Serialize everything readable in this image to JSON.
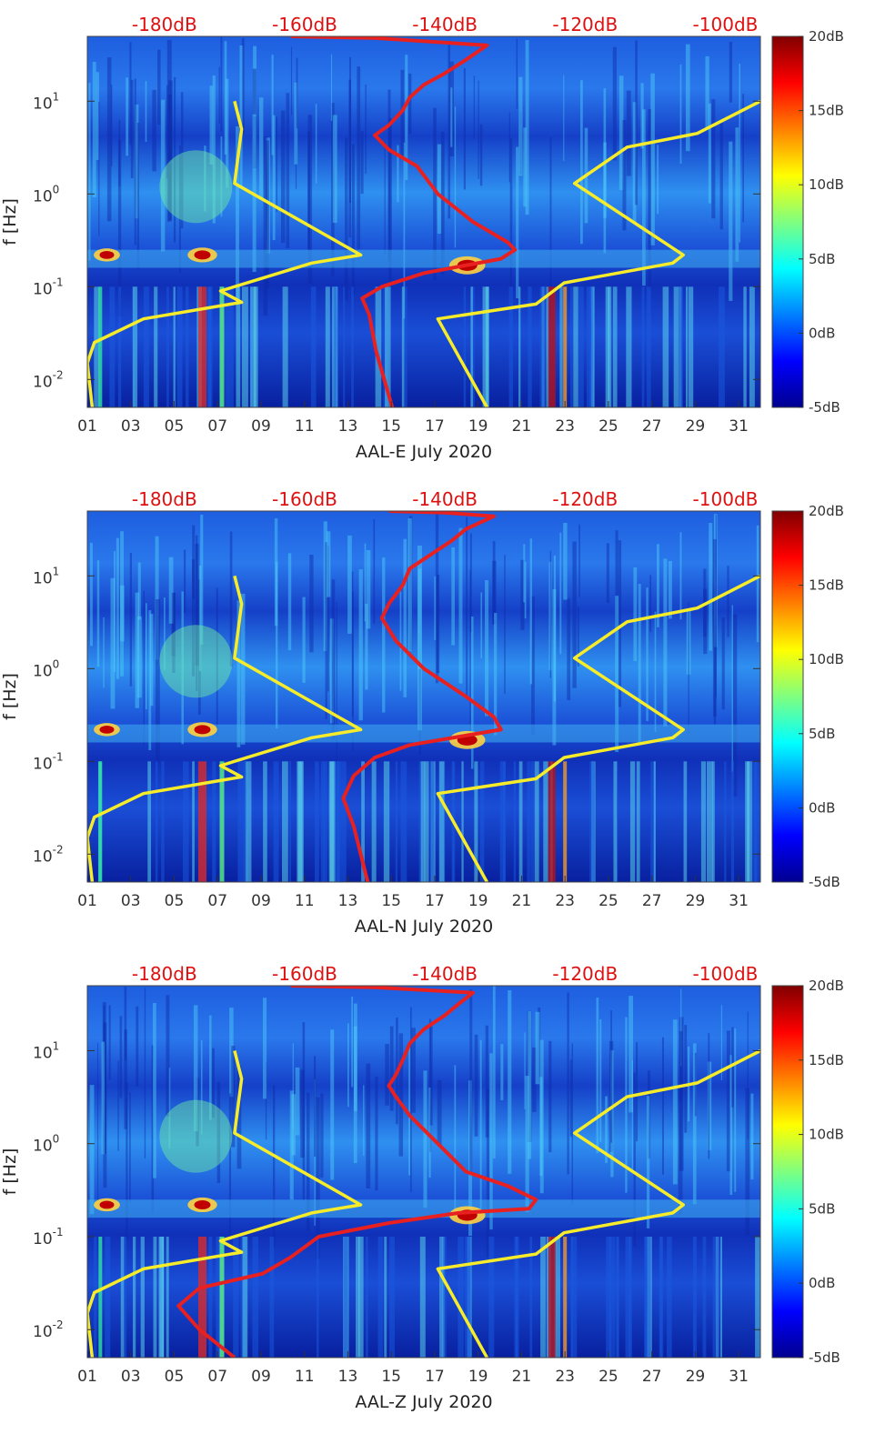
{
  "chart_data": [
    {
      "type": "heatmap",
      "xlabel": "AAL-E July 2020",
      "ylabel": "f [Hz]",
      "x_tick_labels": [
        "01",
        "03",
        "05",
        "07",
        "09",
        "11",
        "13",
        "15",
        "17",
        "19",
        "21",
        "23",
        "25",
        "27",
        "29",
        "31"
      ],
      "xlim": [
        1,
        32
      ],
      "ylim": [
        0.005,
        50
      ],
      "y_scale": "log",
      "y_tick_labels": [
        {
          "base": "10",
          "exp": "-2"
        },
        {
          "base": "10",
          "exp": "-1"
        },
        {
          "base": "10",
          "exp": "0"
        },
        {
          "base": "10",
          "exp": "1"
        }
      ],
      "y_tick_values": [
        0.01,
        0.1,
        1,
        10
      ],
      "top_axis_labels": [
        "-180dB",
        "-160dB",
        "-140dB",
        "-120dB",
        "-100dB"
      ],
      "top_axis_values": [
        -180,
        -160,
        -140,
        -120,
        -100
      ],
      "top_axis_range": [
        -191,
        -95
      ],
      "colorbar": {
        "labels": [
          "20dB",
          "15dB",
          "10dB",
          "5dB",
          "0dB",
          "-5dB"
        ],
        "values": [
          20,
          15,
          10,
          5,
          0,
          -5
        ],
        "range": [
          -5,
          20
        ],
        "colormap": "jet"
      },
      "series": [
        {
          "color": "#f7ec2a",
          "points": [
            [
              -190.3,
              0.005
            ],
            [
              -191,
              0.015
            ],
            [
              -190,
              0.025
            ],
            [
              -183,
              0.045
            ],
            [
              -169,
              0.068
            ],
            [
              -172,
              0.09
            ],
            [
              -159,
              0.18
            ],
            [
              -152,
              0.22
            ],
            [
              -170,
              1.3
            ],
            [
              -169,
              5
            ],
            [
              -170,
              10
            ]
          ]
        },
        {
          "color": "#f7ec2a",
          "points": [
            [
              -134,
              0.005
            ],
            [
              -141,
              0.045
            ],
            [
              -127,
              0.065
            ],
            [
              -123,
              0.11
            ],
            [
              -107.5,
              0.18
            ],
            [
              -106,
              0.22
            ],
            [
              -121.5,
              1.3
            ],
            [
              -114,
              3.2
            ],
            [
              -104,
              4.5
            ],
            [
              -95,
              10
            ]
          ]
        },
        {
          "color": "#e82020",
          "points": [
            [
              -147.5,
              0.005
            ],
            [
              -149.8,
              0.02
            ],
            [
              -150.8,
              0.05
            ],
            [
              -151.8,
              0.075
            ],
            [
              -149,
              0.1
            ],
            [
              -143,
              0.14
            ],
            [
              -132,
              0.2
            ],
            [
              -130,
              0.25
            ],
            [
              -131,
              0.3
            ],
            [
              -136,
              0.5
            ],
            [
              -141,
              1
            ],
            [
              -144,
              2
            ],
            [
              -148,
              3
            ],
            [
              -150,
              4.3
            ],
            [
              -148,
              5.5
            ],
            [
              -146,
              8
            ],
            [
              -145,
              11
            ],
            [
              -143,
              15
            ],
            [
              -140,
              20
            ],
            [
              -137,
              28
            ],
            [
              -134,
              40
            ],
            [
              -150,
              48
            ],
            [
              -162,
              50
            ]
          ]
        }
      ]
    },
    {
      "type": "heatmap",
      "xlabel": "AAL-N July 2020",
      "ylabel": "f [Hz]",
      "x_tick_labels": [
        "01",
        "03",
        "05",
        "07",
        "09",
        "11",
        "13",
        "15",
        "17",
        "19",
        "21",
        "23",
        "25",
        "27",
        "29",
        "31"
      ],
      "xlim": [
        1,
        32
      ],
      "ylim": [
        0.005,
        50
      ],
      "y_scale": "log",
      "y_tick_labels": [
        {
          "base": "10",
          "exp": "-2"
        },
        {
          "base": "10",
          "exp": "-1"
        },
        {
          "base": "10",
          "exp": "0"
        },
        {
          "base": "10",
          "exp": "1"
        }
      ],
      "y_tick_values": [
        0.01,
        0.1,
        1,
        10
      ],
      "top_axis_labels": [
        "-180dB",
        "-160dB",
        "-140dB",
        "-120dB",
        "-100dB"
      ],
      "top_axis_values": [
        -180,
        -160,
        -140,
        -120,
        -100
      ],
      "top_axis_range": [
        -191,
        -95
      ],
      "colorbar": {
        "labels": [
          "20dB",
          "15dB",
          "10dB",
          "5dB",
          "0dB",
          "-5dB"
        ],
        "values": [
          20,
          15,
          10,
          5,
          0,
          -5
        ],
        "range": [
          -5,
          20
        ],
        "colormap": "jet"
      },
      "series": [
        {
          "color": "#f7ec2a",
          "points": [
            [
              -190.3,
              0.005
            ],
            [
              -191,
              0.015
            ],
            [
              -190,
              0.025
            ],
            [
              -183,
              0.045
            ],
            [
              -169,
              0.068
            ],
            [
              -172,
              0.09
            ],
            [
              -159,
              0.18
            ],
            [
              -152,
              0.22
            ],
            [
              -170,
              1.3
            ],
            [
              -169,
              5
            ],
            [
              -170,
              10
            ]
          ]
        },
        {
          "color": "#f7ec2a",
          "points": [
            [
              -134,
              0.005
            ],
            [
              -141,
              0.045
            ],
            [
              -127,
              0.065
            ],
            [
              -123,
              0.11
            ],
            [
              -107.5,
              0.18
            ],
            [
              -106,
              0.22
            ],
            [
              -121.5,
              1.3
            ],
            [
              -114,
              3.2
            ],
            [
              -104,
              4.5
            ],
            [
              -95,
              10
            ]
          ]
        },
        {
          "color": "#e82020",
          "points": [
            [
              -151,
              0.005
            ],
            [
              -153,
              0.02
            ],
            [
              -154.5,
              0.04
            ],
            [
              -153,
              0.07
            ],
            [
              -150,
              0.11
            ],
            [
              -145,
              0.15
            ],
            [
              -137,
              0.19
            ],
            [
              -132,
              0.22
            ],
            [
              -133,
              0.3
            ],
            [
              -137,
              0.5
            ],
            [
              -143,
              1
            ],
            [
              -147,
              2
            ],
            [
              -149,
              3.5
            ],
            [
              -148,
              5
            ],
            [
              -146,
              8
            ],
            [
              -145,
              12
            ],
            [
              -142,
              17
            ],
            [
              -139,
              24
            ],
            [
              -137,
              32
            ],
            [
              -133,
              44
            ],
            [
              -140,
              48
            ],
            [
              -148,
              50
            ]
          ]
        }
      ]
    },
    {
      "type": "heatmap",
      "xlabel": "AAL-Z July 2020",
      "ylabel": "f [Hz]",
      "x_tick_labels": [
        "01",
        "03",
        "05",
        "07",
        "09",
        "11",
        "13",
        "15",
        "17",
        "19",
        "21",
        "23",
        "25",
        "27",
        "29",
        "31"
      ],
      "xlim": [
        1,
        32
      ],
      "ylim": [
        0.005,
        50
      ],
      "y_scale": "log",
      "y_tick_labels": [
        {
          "base": "10",
          "exp": "-2"
        },
        {
          "base": "10",
          "exp": "-1"
        },
        {
          "base": "10",
          "exp": "0"
        },
        {
          "base": "10",
          "exp": "1"
        }
      ],
      "y_tick_values": [
        0.01,
        0.1,
        1,
        10
      ],
      "top_axis_labels": [
        "-180dB",
        "-160dB",
        "-140dB",
        "-120dB",
        "-100dB"
      ],
      "top_axis_values": [
        -180,
        -160,
        -140,
        -120,
        -100
      ],
      "top_axis_range": [
        -191,
        -95
      ],
      "colorbar": {
        "labels": [
          "20dB",
          "15dB",
          "10dB",
          "5dB",
          "0dB",
          "-5dB"
        ],
        "values": [
          20,
          15,
          10,
          5,
          0,
          -5
        ],
        "range": [
          -5,
          20
        ],
        "colormap": "jet"
      },
      "series": [
        {
          "color": "#f7ec2a",
          "points": [
            [
              -190.3,
              0.005
            ],
            [
              -191,
              0.015
            ],
            [
              -190,
              0.025
            ],
            [
              -183,
              0.045
            ],
            [
              -169,
              0.068
            ],
            [
              -172,
              0.09
            ],
            [
              -159,
              0.18
            ],
            [
              -152,
              0.22
            ],
            [
              -170,
              1.3
            ],
            [
              -169,
              5
            ],
            [
              -170,
              10
            ]
          ]
        },
        {
          "color": "#f7ec2a",
          "points": [
            [
              -134,
              0.005
            ],
            [
              -141,
              0.045
            ],
            [
              -127,
              0.065
            ],
            [
              -123,
              0.11
            ],
            [
              -107.5,
              0.18
            ],
            [
              -106,
              0.22
            ],
            [
              -121.5,
              1.3
            ],
            [
              -114,
              3.2
            ],
            [
              -104,
              4.5
            ],
            [
              -95,
              10
            ]
          ]
        },
        {
          "color": "#e82020",
          "points": [
            [
              -170,
              0.005
            ],
            [
              -175,
              0.01
            ],
            [
              -178,
              0.018
            ],
            [
              -175,
              0.028
            ],
            [
              -166,
              0.04
            ],
            [
              -162,
              0.06
            ],
            [
              -158,
              0.1
            ],
            [
              -148,
              0.14
            ],
            [
              -138,
              0.18
            ],
            [
              -128,
              0.2
            ],
            [
              -127,
              0.25
            ],
            [
              -131,
              0.35
            ],
            [
              -137,
              0.5
            ],
            [
              -141,
              1
            ],
            [
              -145,
              2
            ],
            [
              -147,
              3.2
            ],
            [
              -148,
              4.2
            ],
            [
              -147,
              5.5
            ],
            [
              -146,
              8
            ],
            [
              -145,
              12
            ],
            [
              -143,
              17
            ],
            [
              -140,
              24
            ],
            [
              -138,
              32
            ],
            [
              -136,
              42
            ],
            [
              -150,
              48
            ],
            [
              -162,
              50
            ]
          ]
        }
      ]
    }
  ]
}
